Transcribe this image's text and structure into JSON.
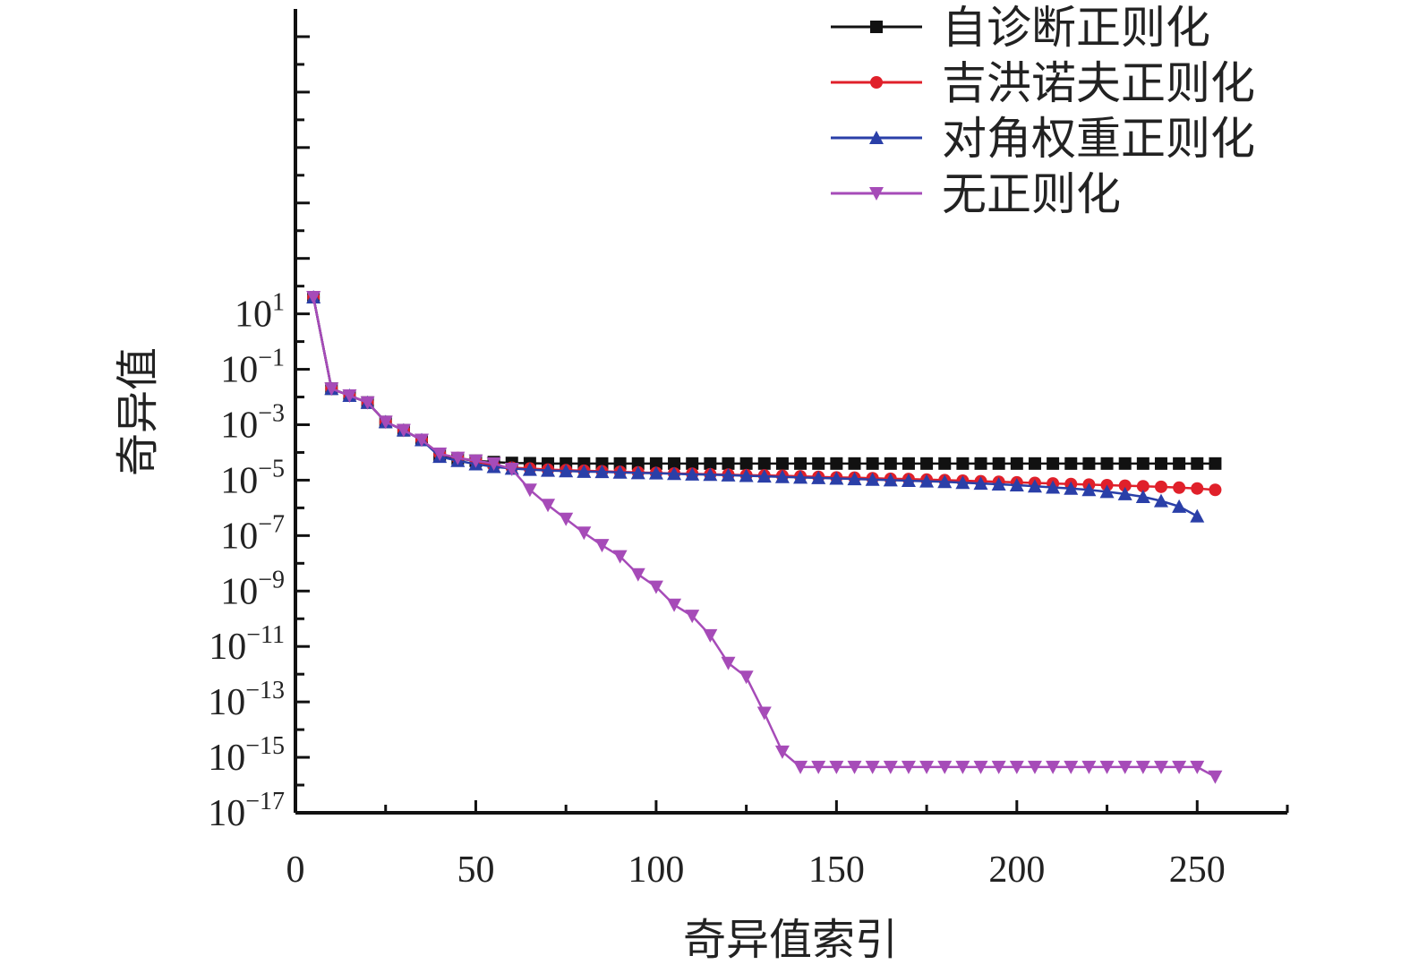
{
  "chart_data": {
    "type": "line",
    "xlabel": "奇异值索引",
    "ylabel": "奇异值",
    "xlim": [
      0,
      275
    ],
    "ylim_log10": [
      -17,
      12
    ],
    "y_scale": "log",
    "x_ticks": [
      0,
      50,
      100,
      150,
      200,
      250
    ],
    "y_tick_exponents": [
      1,
      -1,
      -3,
      -5,
      -7,
      -9,
      -11,
      -13,
      -15,
      -17
    ],
    "legend_position": "top-right",
    "series": [
      {
        "name": "自诊断正则化",
        "color": "#111111",
        "marker": "square",
        "x": [
          5,
          10,
          15,
          20,
          25,
          30,
          35,
          40,
          45,
          50,
          55,
          60,
          65,
          70,
          75,
          80,
          85,
          90,
          95,
          100,
          105,
          110,
          115,
          120,
          125,
          130,
          135,
          140,
          145,
          150,
          155,
          160,
          165,
          170,
          175,
          180,
          185,
          190,
          195,
          200,
          205,
          210,
          215,
          220,
          225,
          230,
          235,
          240,
          245,
          250,
          255
        ],
        "log10_y": [
          1.6,
          -1.7,
          -1.95,
          -2.2,
          -2.9,
          -3.2,
          -3.55,
          -4.1,
          -4.22,
          -4.3,
          -4.35,
          -4.38,
          -4.39,
          -4.4,
          -4.4,
          -4.4,
          -4.4,
          -4.4,
          -4.4,
          -4.4,
          -4.4,
          -4.4,
          -4.4,
          -4.4,
          -4.4,
          -4.4,
          -4.4,
          -4.4,
          -4.4,
          -4.4,
          -4.4,
          -4.4,
          -4.4,
          -4.4,
          -4.4,
          -4.4,
          -4.4,
          -4.4,
          -4.4,
          -4.4,
          -4.4,
          -4.4,
          -4.4,
          -4.4,
          -4.4,
          -4.4,
          -4.4,
          -4.4,
          -4.4,
          -4.4,
          -4.4
        ]
      },
      {
        "name": "吉洪诺夫正则化",
        "color": "#e0202a",
        "marker": "circle",
        "x": [
          5,
          10,
          15,
          20,
          25,
          30,
          35,
          40,
          45,
          50,
          55,
          60,
          65,
          70,
          75,
          80,
          85,
          90,
          95,
          100,
          105,
          110,
          115,
          120,
          125,
          130,
          135,
          140,
          145,
          150,
          155,
          160,
          165,
          170,
          175,
          180,
          185,
          190,
          195,
          200,
          205,
          210,
          215,
          220,
          225,
          230,
          235,
          240,
          245,
          250,
          255
        ],
        "log10_y": [
          1.6,
          -1.7,
          -1.95,
          -2.2,
          -2.9,
          -3.2,
          -3.55,
          -4.05,
          -4.2,
          -4.3,
          -4.5,
          -4.55,
          -4.58,
          -4.62,
          -4.64,
          -4.66,
          -4.68,
          -4.7,
          -4.72,
          -4.74,
          -4.76,
          -4.77,
          -4.79,
          -4.8,
          -4.82,
          -4.83,
          -4.84,
          -4.86,
          -4.88,
          -4.9,
          -4.91,
          -4.93,
          -4.95,
          -4.96,
          -4.98,
          -5.0,
          -5.02,
          -5.04,
          -5.06,
          -5.08,
          -5.1,
          -5.12,
          -5.14,
          -5.16,
          -5.18,
          -5.2,
          -5.22,
          -5.24,
          -5.27,
          -5.3,
          -5.35
        ]
      },
      {
        "name": "对角权重正则化",
        "color": "#2a3fa8",
        "marker": "triangle-up",
        "x": [
          5,
          10,
          15,
          20,
          25,
          30,
          35,
          40,
          45,
          50,
          55,
          60,
          65,
          70,
          75,
          80,
          85,
          90,
          95,
          100,
          105,
          110,
          115,
          120,
          125,
          130,
          135,
          140,
          145,
          150,
          155,
          160,
          165,
          170,
          175,
          180,
          185,
          190,
          195,
          200,
          205,
          210,
          215,
          220,
          225,
          230,
          235,
          240,
          245,
          250
        ],
        "log10_y": [
          1.6,
          -1.7,
          -1.95,
          -2.2,
          -2.9,
          -3.2,
          -3.55,
          -4.15,
          -4.3,
          -4.42,
          -4.52,
          -4.58,
          -4.62,
          -4.65,
          -4.67,
          -4.69,
          -4.7,
          -4.72,
          -4.74,
          -4.75,
          -4.77,
          -4.79,
          -4.8,
          -4.82,
          -4.84,
          -4.86,
          -4.88,
          -4.9,
          -4.92,
          -4.94,
          -4.96,
          -4.98,
          -5.0,
          -5.02,
          -5.04,
          -5.06,
          -5.09,
          -5.12,
          -5.15,
          -5.18,
          -5.22,
          -5.26,
          -5.3,
          -5.35,
          -5.42,
          -5.5,
          -5.6,
          -5.75,
          -5.95,
          -6.3
        ]
      },
      {
        "name": "无正则化",
        "color": "#a64bb8",
        "marker": "triangle-down",
        "x": [
          5,
          10,
          15,
          20,
          25,
          30,
          35,
          40,
          45,
          50,
          55,
          60,
          65,
          70,
          75,
          80,
          85,
          90,
          95,
          100,
          105,
          110,
          115,
          120,
          125,
          130,
          135,
          140,
          145,
          150,
          155,
          160,
          165,
          170,
          175,
          180,
          185,
          190,
          195,
          200,
          205,
          210,
          215,
          220,
          225,
          230,
          235,
          240,
          245,
          250,
          255
        ],
        "log10_y": [
          1.6,
          -1.7,
          -1.95,
          -2.2,
          -2.9,
          -3.2,
          -3.55,
          -4.05,
          -4.2,
          -4.3,
          -4.4,
          -4.6,
          -5.35,
          -5.9,
          -6.4,
          -6.9,
          -7.35,
          -7.75,
          -8.4,
          -8.85,
          -9.5,
          -9.9,
          -10.6,
          -11.6,
          -12.1,
          -13.4,
          -14.8,
          -15.35,
          -15.35,
          -15.35,
          -15.35,
          -15.35,
          -15.35,
          -15.35,
          -15.35,
          -15.35,
          -15.35,
          -15.35,
          -15.35,
          -15.35,
          -15.35,
          -15.35,
          -15.35,
          -15.35,
          -15.35,
          -15.35,
          -15.35,
          -15.35,
          -15.35,
          -15.35,
          -15.7
        ]
      }
    ]
  }
}
